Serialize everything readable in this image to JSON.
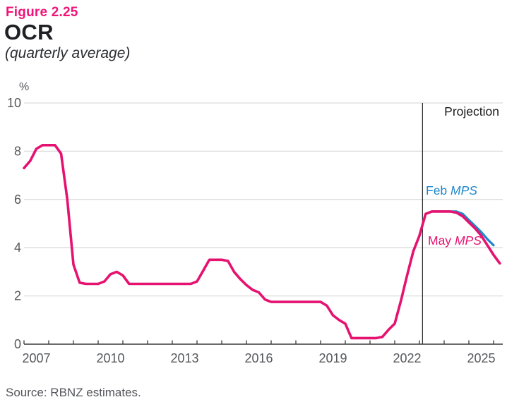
{
  "figure": {
    "label": "Figure 2.25",
    "title": "OCR",
    "subtitle": "(quarterly average)",
    "source": "Source: RBNZ estimates."
  },
  "colors": {
    "pink": "#E51270",
    "blue": "#1F87C9",
    "grid": "#DADBDC",
    "axis": "#3A3A3C",
    "tick_text": "#55575B",
    "projection_line": "#2B2C2E",
    "projection_text": "#191A1D"
  },
  "chart_data": {
    "type": "line",
    "title": "OCR",
    "subtitle": "(quarterly average)",
    "ylabel": "%",
    "ylim": [
      0,
      10
    ],
    "yticks": [
      0,
      2,
      4,
      6,
      8,
      10
    ],
    "x_axis": {
      "tick_start": 2007,
      "tick_end": 2026,
      "labeled_ticks": [
        2007,
        2010,
        2013,
        2016,
        2019,
        2022,
        2025
      ]
    },
    "grid": "horizontal",
    "legend_position": "inline-right",
    "projection": {
      "x": 2023.125,
      "label": "Projection"
    },
    "series": [
      {
        "name": "Feb MPS",
        "label_prefix": "Feb ",
        "label_italic": "MPS",
        "color": "#1F87C9",
        "x_start": 2023.0,
        "x_step": 0.25,
        "values": [
          4.5,
          5.4,
          5.5,
          5.5,
          5.5,
          5.5,
          5.5,
          5.4,
          5.15,
          4.9,
          4.65,
          4.35,
          4.1
        ]
      },
      {
        "name": "May MPS",
        "label_prefix": "May ",
        "label_italic": "MPS",
        "color": "#E51270",
        "x_start": 2007.0,
        "x_step": 0.25,
        "values": [
          7.3,
          7.6,
          8.1,
          8.25,
          8.25,
          8.25,
          7.9,
          6.0,
          3.3,
          2.55,
          2.5,
          2.5,
          2.5,
          2.6,
          2.9,
          3.0,
          2.85,
          2.5,
          2.5,
          2.5,
          2.5,
          2.5,
          2.5,
          2.5,
          2.5,
          2.5,
          2.5,
          2.5,
          2.6,
          3.05,
          3.5,
          3.5,
          3.5,
          3.45,
          3.0,
          2.7,
          2.45,
          2.25,
          2.15,
          1.85,
          1.75,
          1.75,
          1.75,
          1.75,
          1.75,
          1.75,
          1.75,
          1.75,
          1.75,
          1.6,
          1.2,
          1.0,
          0.85,
          0.25,
          0.25,
          0.25,
          0.25,
          0.25,
          0.3,
          0.6,
          0.85,
          1.8,
          2.85,
          3.85,
          4.5,
          5.4,
          5.5,
          5.5,
          5.5,
          5.5,
          5.45,
          5.3,
          5.05,
          4.8,
          4.5,
          4.1,
          3.7,
          3.35
        ]
      }
    ]
  }
}
